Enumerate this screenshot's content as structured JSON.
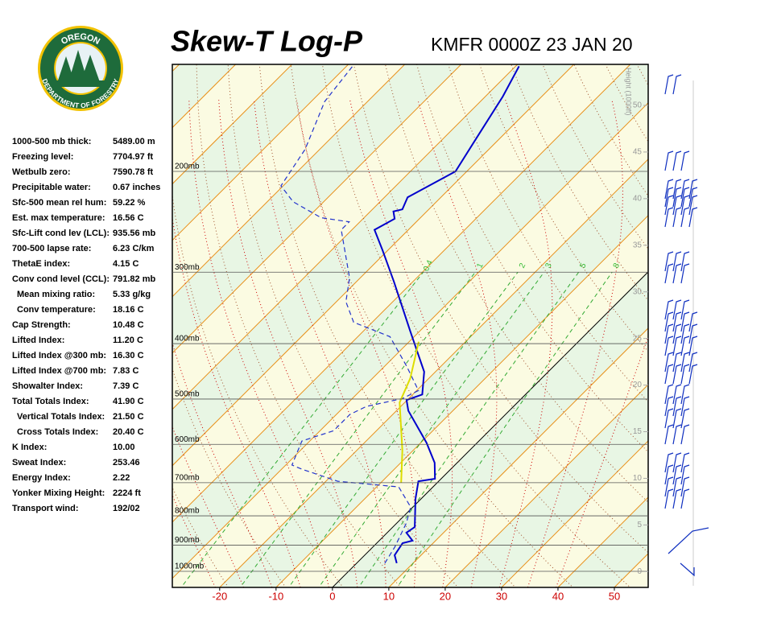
{
  "header": {
    "title": "Skew-T Log-P",
    "station": "KMFR 0000Z 23 JAN 20",
    "logo": {
      "top": "OREGON",
      "bottom": "DEPARTMENT OF FORESTRY"
    }
  },
  "indices": {
    "rows": [
      {
        "label": "1000-500 mb thick:",
        "value": "5489.00 m"
      },
      {
        "label": "Freezing level:",
        "value": "7704.97 ft"
      },
      {
        "label": "Wetbulb zero:",
        "value": "7590.78 ft"
      },
      {
        "label": "Precipitable water:",
        "value": "0.67 inches"
      },
      {
        "label": "Sfc-500 mean rel hum:",
        "value": "59.22 %"
      },
      {
        "label": "Est. max temperature:",
        "value": "16.56 C"
      },
      {
        "label": "Sfc-Lift cond lev (LCL):",
        "value": "935.56 mb"
      },
      {
        "label": "700-500 lapse rate:",
        "value": "6.23 C/km"
      },
      {
        "label": "ThetaE index:",
        "value": "4.15 C"
      },
      {
        "label": "Conv cond level (CCL):",
        "value": "791.82 mb"
      },
      {
        "label": "Mean mixing ratio:",
        "value": "5.33 g/kg"
      },
      {
        "label": "Conv temperature:",
        "value": "18.16 C"
      },
      {
        "label": "Cap Strength:",
        "value": "10.48 C"
      },
      {
        "label": "Lifted Index:",
        "value": "11.20 C"
      },
      {
        "label": "Lifted Index @300 mb:",
        "value": "16.30 C"
      },
      {
        "label": "Lifted Index @700 mb:",
        "value": "7.83 C"
      },
      {
        "label": "Showalter Index:",
        "value": "7.39 C"
      },
      {
        "label": "Total Totals Index:",
        "value": "41.90 C"
      },
      {
        "label": "Vertical Totals Index:",
        "value": "21.50 C"
      },
      {
        "label": "Cross Totals Index:",
        "value": "20.40 C"
      },
      {
        "label": "K Index:",
        "value": "10.00"
      },
      {
        "label": "Sweat Index:",
        "value": "253.46"
      },
      {
        "label": "Energy Index:",
        "value": "2.22"
      },
      {
        "label": "Yonker Mixing Height:",
        "value": "2224 ft"
      },
      {
        "label": "Transport wind:",
        "value": "192/02"
      }
    ]
  },
  "chart_data": {
    "type": "skewt",
    "log_y": true,
    "xlim": [
      -28.4,
      56.0
    ],
    "xticks": [
      -20,
      -10,
      0,
      10,
      20,
      30,
      40,
      50
    ],
    "xtick_color": "#cc0000",
    "ylim": [
      1067,
      130
    ],
    "yticks": [
      {
        "value": 1000,
        "label": "1000mb"
      },
      {
        "value": 900,
        "label": "900mb"
      },
      {
        "value": 800,
        "label": "800mb"
      },
      {
        "value": 700,
        "label": "700mb"
      },
      {
        "value": 600,
        "label": "600mb"
      },
      {
        "value": 500,
        "label": "500mb"
      },
      {
        "value": 400,
        "label": "400mb"
      },
      {
        "value": 300,
        "label": "300mb"
      },
      {
        "value": 200,
        "label": "200mb"
      }
    ],
    "height_axis": {
      "label": "Height (1000ft)",
      "lim": [
        -1.7,
        54.4
      ],
      "ticks": [
        0,
        5,
        10,
        15,
        20,
        25,
        30,
        35,
        40,
        45,
        50
      ]
    },
    "mixing_ratio_labels": [
      0.4,
      1,
      2,
      3,
      5,
      8
    ],
    "series": [
      {
        "color": "#0000cc",
        "dash": false,
        "x": [
          7.1,
          5.3,
          4.6,
          5.9,
          3.4,
          3.9,
          -1.0,
          -3.6,
          -1.1,
          -4.0,
          -9.0,
          -17.9,
          -20.1,
          -18.3,
          -22.0,
          -31.9,
          -43.3,
          -51.1,
          -56.0,
          -54.4,
          -55.9,
          -54.7,
          -55.9,
          -52.0,
          -54.0,
          -56.9,
          -59.4
        ],
        "values": [
          968,
          937,
          893,
          884,
          856,
          837,
          747,
          696,
          689,
          646,
          596,
          524,
          502,
          491,
          448,
          379,
          312,
          274,
          253,
          242,
          235,
          233,
          222,
          200,
          177,
          148,
          131
        ]
      },
      {
        "color": "#2233cc",
        "dash": true,
        "x": [
          5.0,
          3.9,
          1.7,
          -0.4,
          -6.1,
          -17.9,
          -26.4,
          -28.9,
          -31.4,
          -27.6,
          -27.6,
          -26.1,
          -21.1,
          -19.7,
          -26.1,
          -34.3,
          -43.3,
          -48.3,
          -51.9,
          -61.9,
          -61.9,
          -67.6,
          -75.4,
          -80.4,
          -82.6,
          -87.6,
          -89.0
        ],
        "values": [
          968,
          907,
          824,
          772,
          712,
          696,
          663,
          652,
          592,
          568,
          532,
          515,
          499,
          483,
          438,
          389,
          367,
          338,
          307,
          253,
          245,
          241,
          226,
          212,
          183,
          151,
          130
        ]
      },
      {
        "color": "#dddd00",
        "dash": false,
        "x": [
          -6.4,
          -11.9,
          -20.9,
          -23.3,
          -28.3
        ],
        "values": [
          700,
          615,
          507,
          460,
          397
        ]
      }
    ]
  }
}
